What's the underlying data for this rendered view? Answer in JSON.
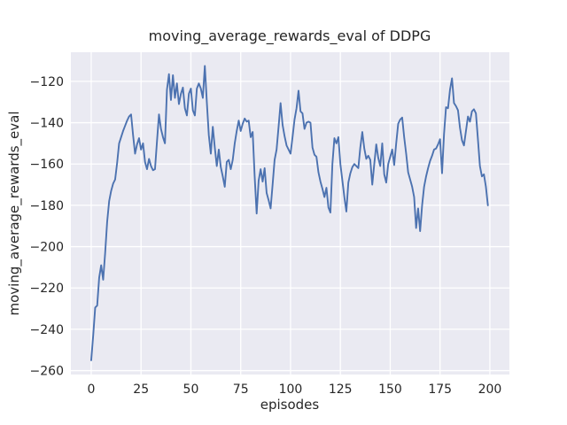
{
  "figure": {
    "background": "#ffffff",
    "axes_background": "#eaeaf2",
    "grid_color": "#ffffff",
    "text_color": "#262626"
  },
  "chart_data": {
    "type": "line",
    "title": "moving_average_rewards_eval of DDPG",
    "xlabel": "episodes",
    "ylabel": "moving_average_rewards_eval",
    "grid": true,
    "legend": "none",
    "xlim": [
      -10.2,
      209.8
    ],
    "ylim": [
      -261.9,
      -105.9
    ],
    "x_ticks": [
      0,
      25,
      50,
      75,
      100,
      125,
      150,
      175,
      200
    ],
    "x_tick_labels": [
      "0",
      "25",
      "50",
      "75",
      "100",
      "125",
      "150",
      "175",
      "200"
    ],
    "y_ticks": [
      -120,
      -140,
      -160,
      -180,
      -200,
      -220,
      -240,
      -260
    ],
    "y_tick_labels": [
      "−120",
      "−140",
      "−160",
      "−180",
      "−200",
      "−220",
      "−240",
      "−260"
    ],
    "series": [
      {
        "name": "moving_average_rewards_eval",
        "color": "#4c72b0",
        "x_start": 0,
        "x_step": 1,
        "y": [
          -255,
          -243,
          -229.5,
          -228.5,
          -215,
          -209,
          -216,
          -203,
          -188,
          -178,
          -173,
          -169.5,
          -167.5,
          -159.5,
          -150,
          -147,
          -144,
          -141.5,
          -139,
          -137,
          -136,
          -146,
          -155,
          -150.5,
          -147.5,
          -153,
          -150,
          -159,
          -162.5,
          -157.5,
          -161,
          -163,
          -162.5,
          -149,
          -136,
          -143,
          -147,
          -150,
          -124,
          -116.5,
          -129,
          -117,
          -128,
          -121,
          -131,
          -126,
          -123,
          -133,
          -136.5,
          -126,
          -123.5,
          -134,
          -136.5,
          -123.5,
          -121,
          -123.5,
          -128,
          -112.5,
          -130,
          -146,
          -155,
          -142,
          -152,
          -161,
          -153,
          -161.5,
          -166,
          -171,
          -159,
          -158,
          -162.5,
          -158,
          -150,
          -144,
          -139,
          -144,
          -140.5,
          -138,
          -139.5,
          -139,
          -147,
          -144.5,
          -166,
          -184,
          -168,
          -162.5,
          -168.5,
          -162,
          -174,
          -177.5,
          -181.5,
          -170,
          -158,
          -153,
          -142,
          -130.5,
          -141,
          -146.5,
          -151,
          -153,
          -155,
          -147,
          -138.5,
          -133,
          -124.5,
          -134.5,
          -135.5,
          -143,
          -140,
          -139.5,
          -140,
          -152,
          -155.5,
          -156.5,
          -164,
          -168.5,
          -172,
          -176,
          -171.5,
          -181,
          -183.5,
          -160,
          -147.5,
          -150,
          -147,
          -160,
          -168,
          -176,
          -183,
          -169,
          -164.5,
          -161.5,
          -160,
          -161,
          -162,
          -152,
          -144.5,
          -152.5,
          -157.5,
          -156,
          -158,
          -170,
          -160,
          -150.5,
          -157,
          -161,
          -150,
          -165,
          -169,
          -160,
          -156.5,
          -153,
          -160.5,
          -150,
          -140.5,
          -138.5,
          -137.5,
          -147,
          -155,
          -164,
          -167.5,
          -171,
          -176,
          -191,
          -181.5,
          -192.5,
          -180,
          -171,
          -166,
          -162,
          -158.5,
          -156,
          -153,
          -152.5,
          -150.5,
          -148,
          -164.5,
          -145.5,
          -132.5,
          -133,
          -124,
          -118.5,
          -130.5,
          -132,
          -134,
          -142.5,
          -148.5,
          -151,
          -144,
          -137,
          -139.5,
          -134.5,
          -133.5,
          -135.5,
          -148,
          -161,
          -166,
          -165,
          -171,
          -180
        ]
      }
    ]
  }
}
